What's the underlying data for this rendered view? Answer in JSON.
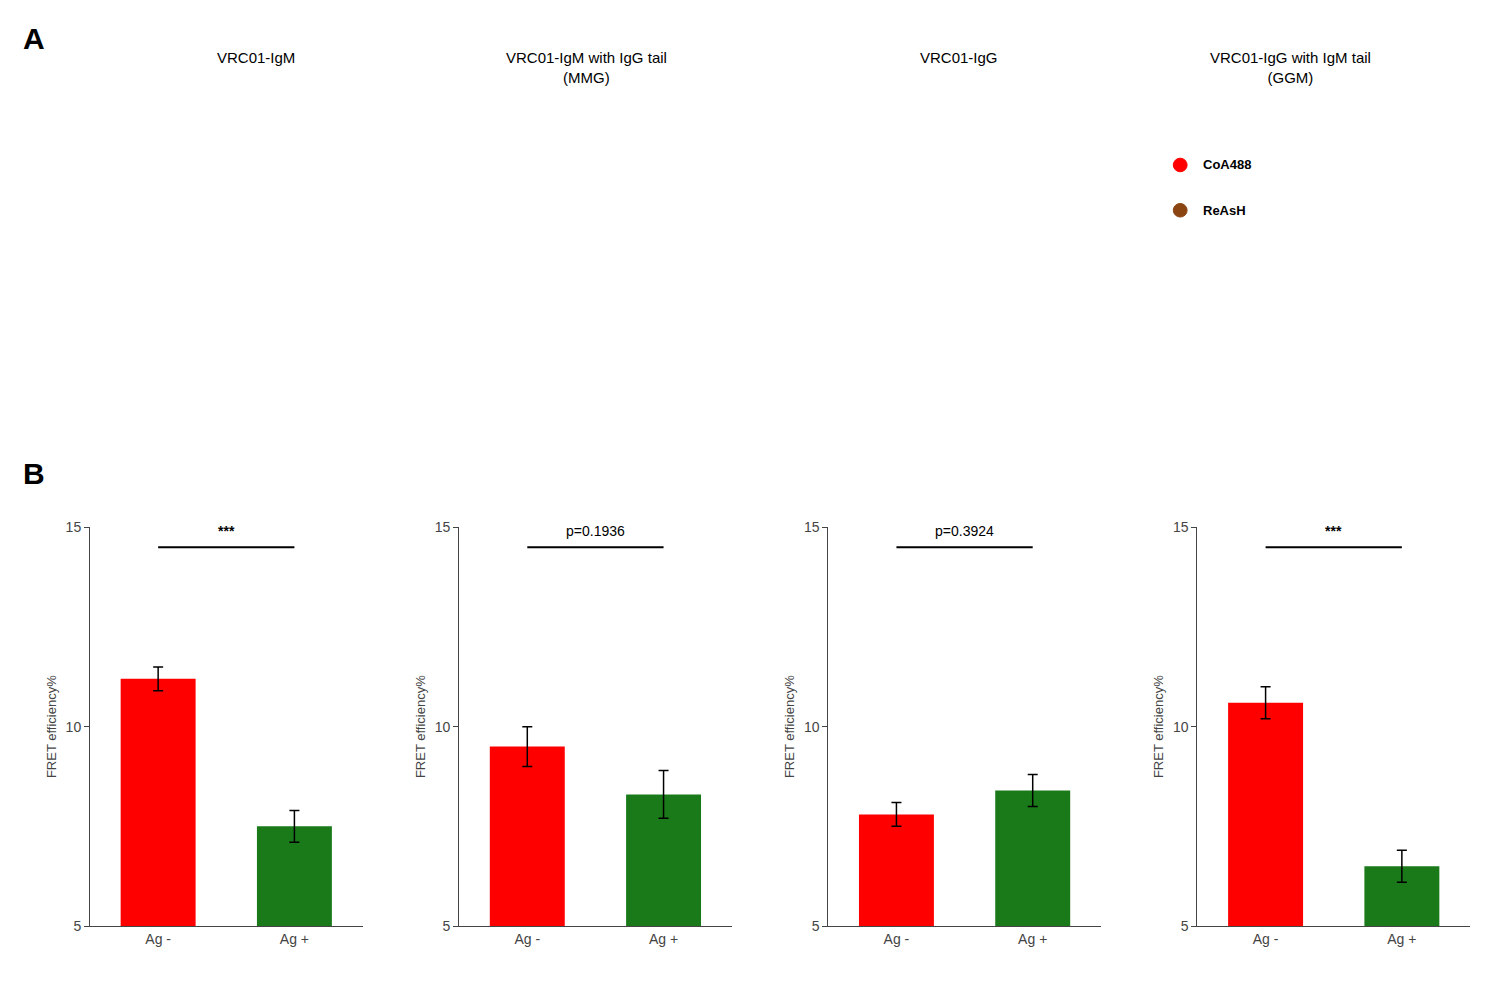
{
  "panel_labels": [
    "A",
    "B"
  ],
  "illustration": {
    "titles": [
      "VRC01-IgM",
      "VRC01-IgM with IgG tail\n(MMG)",
      "VRC01-IgG",
      "VRC01-IgG with IgM tail\n(GGM)"
    ],
    "legend_entries": [
      {
        "name": "CoA488",
        "color": "#FF0000"
      },
      {
        "name": "ReAsH",
        "color": "#8B4513"
      }
    ]
  },
  "chart_data": [
    {
      "type": "bar",
      "categories": [
        "Ag -",
        "Ag +"
      ],
      "values": [
        11.2,
        7.5
      ],
      "errors": [
        0.3,
        0.4
      ],
      "colors": [
        "#FF0000",
        "#1A7A1A"
      ],
      "ylabel": "FRET efficiency%",
      "ylim": [
        5,
        15
      ],
      "yticks": [
        5,
        10,
        15
      ],
      "grid": false,
      "annotations": [
        "***"
      ]
    },
    {
      "type": "bar",
      "categories": [
        "Ag -",
        "Ag +"
      ],
      "values": [
        9.5,
        8.3
      ],
      "errors": [
        0.5,
        0.6
      ],
      "colors": [
        "#FF0000",
        "#1A7A1A"
      ],
      "ylabel": "FRET efficiency%",
      "ylim": [
        5,
        15
      ],
      "yticks": [
        5,
        10,
        15
      ],
      "grid": false,
      "annotations": [
        "p=0.1936"
      ]
    },
    {
      "type": "bar",
      "categories": [
        "Ag -",
        "Ag +"
      ],
      "values": [
        7.8,
        8.4
      ],
      "errors": [
        0.3,
        0.4
      ],
      "colors": [
        "#FF0000",
        "#1A7A1A"
      ],
      "ylabel": "FRET efficiency%",
      "ylim": [
        5,
        15
      ],
      "yticks": [
        5,
        10,
        15
      ],
      "grid": false,
      "annotations": [
        "p=0.3924"
      ]
    },
    {
      "type": "bar",
      "categories": [
        "Ag -",
        "Ag +"
      ],
      "values": [
        10.6,
        6.5
      ],
      "errors": [
        0.4,
        0.4
      ],
      "colors": [
        "#FF0000",
        "#1A7A1A"
      ],
      "ylabel": "FRET efficiency%",
      "ylim": [
        5,
        15
      ],
      "yticks": [
        5,
        10,
        15
      ],
      "grid": false,
      "annotations": [
        "***"
      ]
    }
  ]
}
